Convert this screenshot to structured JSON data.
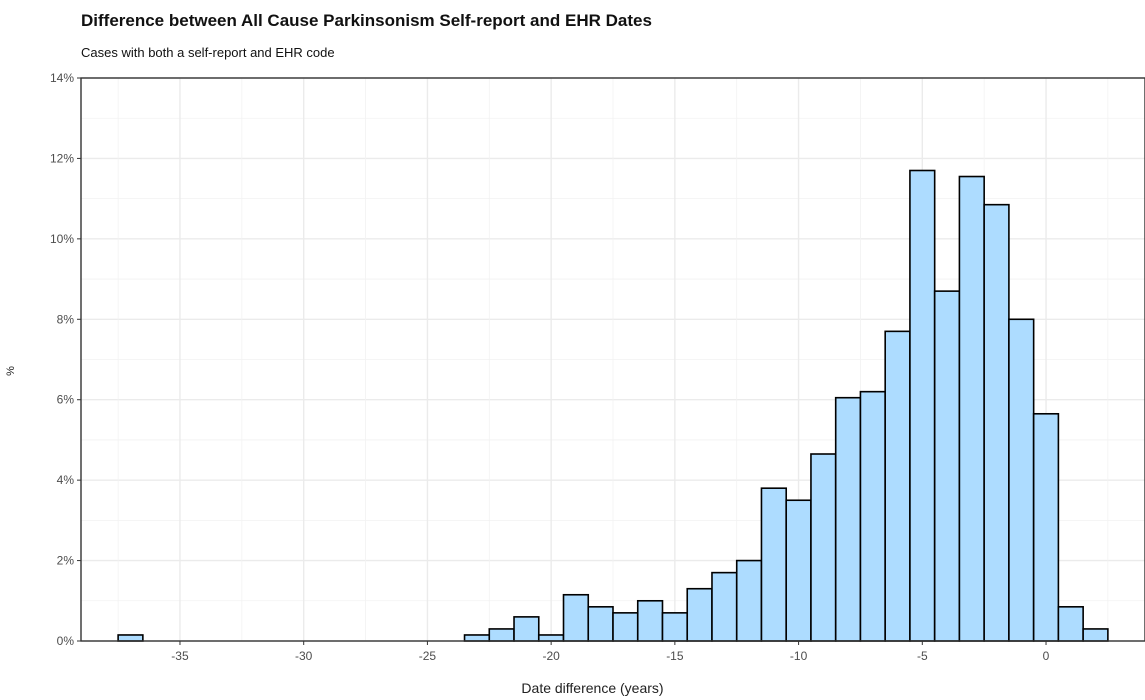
{
  "chart_data": {
    "type": "bar",
    "title": "Difference between All Cause Parkinsonism Self-report and EHR Dates",
    "subtitle": "Cases with both a self-report and EHR code",
    "xlabel": "Date difference (years)",
    "ylabel": "%",
    "bin_width": 1,
    "xlim": [
      -39,
      4
    ],
    "ylim": [
      0,
      14
    ],
    "x_ticks": [
      -35,
      -30,
      -25,
      -20,
      -15,
      -10,
      -5,
      0
    ],
    "x_tick_labels": [
      "-35",
      "-30",
      "-25",
      "-20",
      "-15",
      "-10",
      "-5",
      "0"
    ],
    "y_ticks": [
      0,
      2,
      4,
      6,
      8,
      10,
      12,
      14
    ],
    "y_tick_labels": [
      "0%",
      "2%",
      "4%",
      "6%",
      "8%",
      "10%",
      "12%",
      "14%"
    ],
    "grid": true,
    "bar_fill": "#addcff",
    "bar_stroke": "#000000",
    "x": [
      -37,
      -23,
      -22,
      -21,
      -20,
      -19,
      -18,
      -17,
      -16,
      -15,
      -14,
      -13,
      -12,
      -11,
      -10,
      -9,
      -8,
      -7,
      -6,
      -5,
      -4,
      -3,
      -2,
      -1,
      0,
      1,
      2
    ],
    "values": [
      0.15,
      0.15,
      0.3,
      0.6,
      0.15,
      1.15,
      0.85,
      0.7,
      1.0,
      0.7,
      1.3,
      1.7,
      2.0,
      3.8,
      3.5,
      4.65,
      6.05,
      6.2,
      7.7,
      11.7,
      8.7,
      11.55,
      10.85,
      8.0,
      5.65,
      0.85,
      0.3
    ]
  }
}
